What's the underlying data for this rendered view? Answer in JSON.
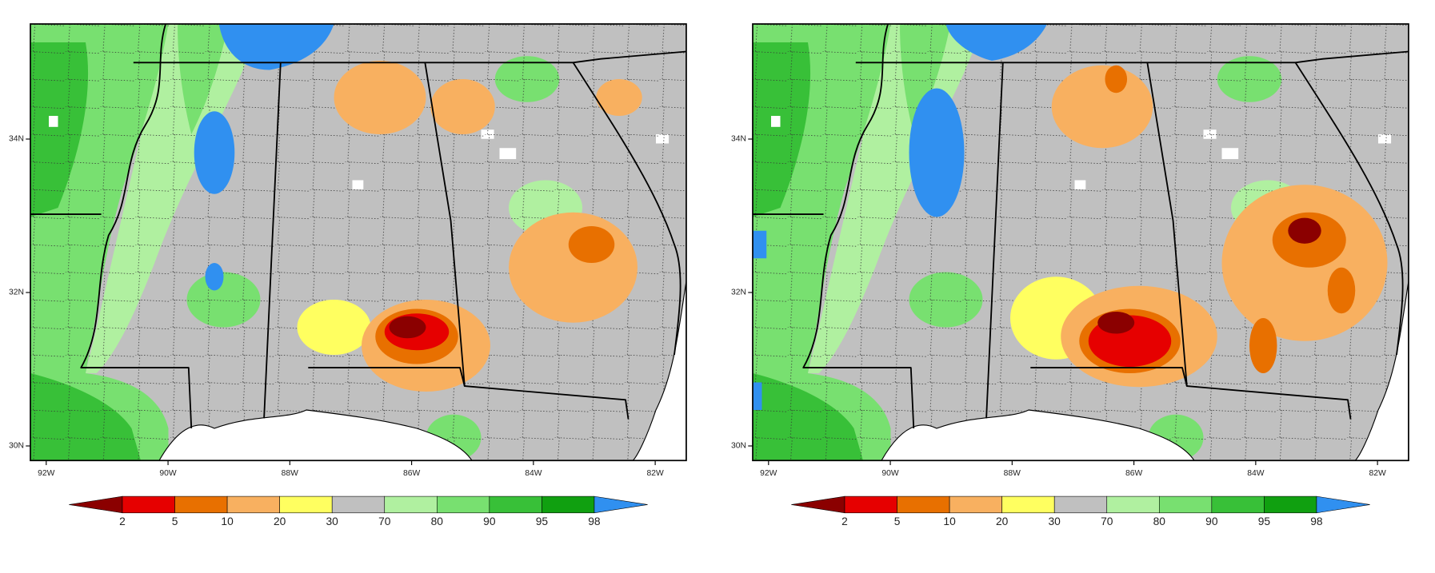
{
  "panels": [
    {
      "lonlim": [
        -92.26,
        -81.49
      ],
      "latlim": [
        29.81,
        35.5
      ],
      "lon_ticks": [
        {
          "value": -92,
          "label": "92W"
        },
        {
          "value": -90,
          "label": "90W"
        },
        {
          "value": -88,
          "label": "88W"
        },
        {
          "value": -86,
          "label": "86W"
        },
        {
          "value": -84,
          "label": "84W"
        },
        {
          "value": -82,
          "label": "82W"
        }
      ],
      "lat_ticks": [
        {
          "value": 34,
          "label": "34N"
        },
        {
          "value": 32,
          "label": "32N"
        },
        {
          "value": 30,
          "label": "30N"
        }
      ],
      "colorbar": {
        "levels": [
          2,
          5,
          10,
          20,
          30,
          70,
          80,
          90,
          95,
          98
        ],
        "colors": [
          "#8b0000",
          "#e60000",
          "#e87000",
          "#f8b060",
          "#ffff60",
          "#c0c0c0",
          "#b0f0a0",
          "#78e070",
          "#38c038",
          "#10a010",
          "#3090f0"
        ]
      }
    },
    {
      "lonlim": [
        -92.26,
        -81.49
      ],
      "latlim": [
        29.81,
        35.5
      ],
      "lon_ticks": [
        {
          "value": -92,
          "label": "92W"
        },
        {
          "value": -90,
          "label": "90W"
        },
        {
          "value": -88,
          "label": "88W"
        },
        {
          "value": -86,
          "label": "86W"
        },
        {
          "value": -84,
          "label": "84W"
        },
        {
          "value": -82,
          "label": "82W"
        }
      ],
      "lat_ticks": [
        {
          "value": 34,
          "label": "34N"
        },
        {
          "value": 32,
          "label": "32N"
        },
        {
          "value": 30,
          "label": "30N"
        }
      ],
      "colorbar": {
        "levels": [
          2,
          5,
          10,
          20,
          30,
          70,
          80,
          90,
          95,
          98
        ],
        "colors": [
          "#8b0000",
          "#e60000",
          "#e87000",
          "#f8b060",
          "#ffff60",
          "#c0c0c0",
          "#b0f0a0",
          "#78e070",
          "#38c038",
          "#10a010",
          "#3090f0"
        ]
      }
    }
  ]
}
